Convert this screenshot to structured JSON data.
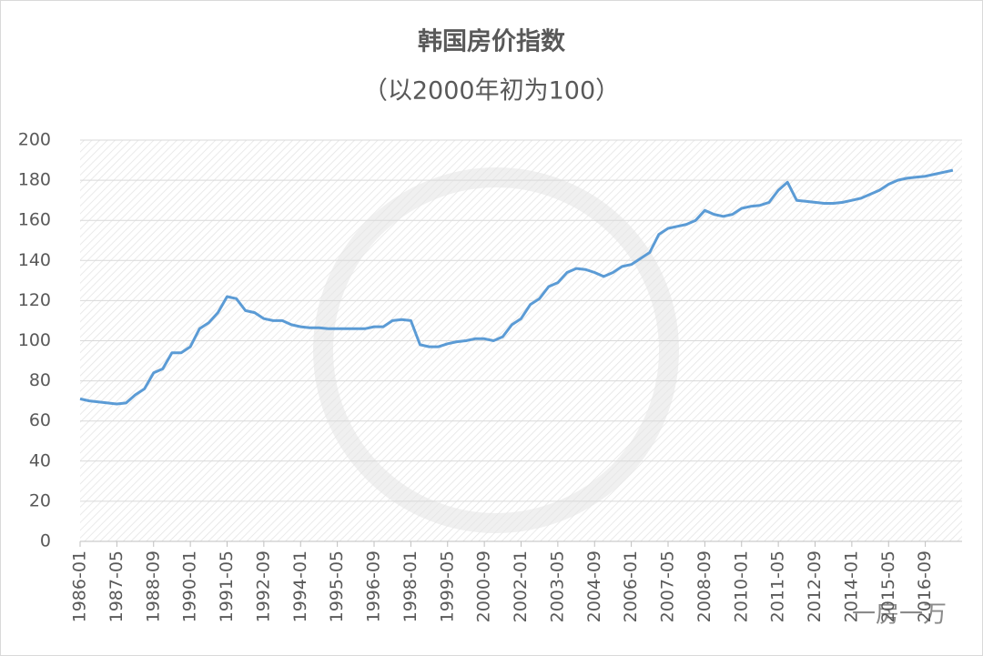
{
  "chart_data": {
    "type": "line",
    "title": "韩国房价指数",
    "subtitle": "（以2000年初为100）",
    "watermark": "一房一万",
    "categories": [
      "1986-01",
      null,
      null,
      null,
      "1987-05",
      null,
      null,
      null,
      "1988-09",
      null,
      null,
      null,
      "1990-01",
      null,
      null,
      null,
      "1991-05",
      null,
      null,
      null,
      "1992-09",
      null,
      null,
      null,
      "1994-01",
      null,
      null,
      null,
      "1995-05",
      null,
      null,
      null,
      "1996-09",
      null,
      null,
      null,
      "1998-01",
      null,
      null,
      null,
      "1999-05",
      null,
      null,
      null,
      "2000-09",
      null,
      null,
      null,
      "2002-01",
      null,
      null,
      null,
      "2003-05",
      null,
      null,
      null,
      "2004-09",
      null,
      null,
      null,
      "2006-01",
      null,
      null,
      null,
      "2007-05",
      null,
      null,
      null,
      "2008-09",
      null,
      null,
      null,
      "2010-01",
      null,
      null,
      null,
      "2011-05",
      null,
      null,
      null,
      "2012-09",
      null,
      null,
      null,
      "2014-01",
      null,
      null,
      null,
      "2015-05",
      null,
      null,
      null,
      "2016-09",
      null,
      null,
      null
    ],
    "series": [
      {
        "name": "韩国房价指数",
        "color": "#5b9bd5",
        "values": [
          71,
          70,
          69.5,
          69,
          68.5,
          69,
          73,
          76,
          84,
          86,
          94,
          94,
          97,
          106,
          109,
          114,
          122,
          121,
          115,
          114,
          111,
          110,
          110,
          108,
          107,
          106.5,
          106.5,
          106,
          106,
          106,
          106,
          106,
          107,
          107,
          110,
          110.5,
          110,
          98,
          97,
          97,
          98.5,
          99.5,
          100,
          101,
          101,
          100,
          102,
          108,
          111,
          118,
          121,
          127,
          129,
          134,
          136,
          135.5,
          134,
          132,
          134,
          137,
          138,
          141,
          144,
          153,
          156,
          157,
          158,
          160,
          165,
          163,
          162,
          163,
          166,
          167,
          167.5,
          169,
          175,
          179,
          170,
          169.5,
          169,
          168.5,
          168.5,
          169,
          170,
          171,
          173,
          175,
          178,
          180,
          181,
          181.5,
          182,
          183,
          184,
          185
        ]
      }
    ],
    "ylim": [
      0,
      200
    ],
    "yticks": [
      0,
      20,
      40,
      60,
      80,
      100,
      120,
      140,
      160,
      180,
      200
    ],
    "grid": true
  }
}
